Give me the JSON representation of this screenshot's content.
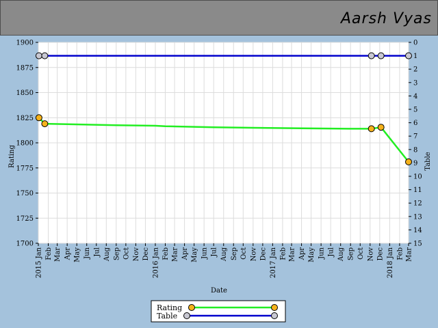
{
  "header": {
    "player_name": "Aarsh Vyas"
  },
  "chart_data": {
    "type": "line",
    "xlabel": "Date",
    "ylabel": "Rating",
    "y2label": "Table",
    "ylim": [
      1700,
      1900
    ],
    "y2lim": [
      0,
      15
    ],
    "y2_inverted": true,
    "grid": true,
    "legend_position": "bottom-center",
    "x_ticks": [
      {
        "date": "2015-01",
        "label": "2015 Jan"
      },
      {
        "date": "2015-02",
        "label": "Feb"
      },
      {
        "date": "2015-03",
        "label": "Mar"
      },
      {
        "date": "2015-04",
        "label": "Apr"
      },
      {
        "date": "2015-05",
        "label": "May"
      },
      {
        "date": "2015-06",
        "label": "Jun"
      },
      {
        "date": "2015-07",
        "label": "Jul"
      },
      {
        "date": "2015-08",
        "label": "Aug"
      },
      {
        "date": "2015-09",
        "label": "Sep"
      },
      {
        "date": "2015-10",
        "label": "Oct"
      },
      {
        "date": "2015-11",
        "label": "Nov"
      },
      {
        "date": "2015-12",
        "label": "Dec"
      },
      {
        "date": "2016-01",
        "label": "2016 Jan"
      },
      {
        "date": "2016-02",
        "label": "Feb"
      },
      {
        "date": "2016-03",
        "label": "Mar"
      },
      {
        "date": "2016-04",
        "label": "Apr"
      },
      {
        "date": "2016-05",
        "label": "May"
      },
      {
        "date": "2016-06",
        "label": "Jun"
      },
      {
        "date": "2016-07",
        "label": "Jul"
      },
      {
        "date": "2016-08",
        "label": "Aug"
      },
      {
        "date": "2016-09",
        "label": "Sep"
      },
      {
        "date": "2016-10",
        "label": "Oct"
      },
      {
        "date": "2016-11",
        "label": "Nov"
      },
      {
        "date": "2016-12",
        "label": "Dec"
      },
      {
        "date": "2017-01",
        "label": "2017 Jan"
      },
      {
        "date": "2017-02",
        "label": "Feb"
      },
      {
        "date": "2017-03",
        "label": "Mar"
      },
      {
        "date": "2017-04",
        "label": "Apr"
      },
      {
        "date": "2017-05",
        "label": "May"
      },
      {
        "date": "2017-06",
        "label": "Jun"
      },
      {
        "date": "2017-07",
        "label": "Jul"
      },
      {
        "date": "2017-08",
        "label": "Aug"
      },
      {
        "date": "2017-09",
        "label": "Sep"
      },
      {
        "date": "2017-10",
        "label": "Oct"
      },
      {
        "date": "2017-11",
        "label": "Nov"
      },
      {
        "date": "2017-12",
        "label": "Dec"
      },
      {
        "date": "2018-01",
        "label": "2018 Jan"
      },
      {
        "date": "2018-02",
        "label": "Feb"
      },
      {
        "date": "2018-03",
        "label": "Mar"
      }
    ],
    "y_ticks": [
      1700,
      1725,
      1750,
      1775,
      1800,
      1825,
      1850,
      1875,
      1900
    ],
    "y2_ticks": [
      0,
      1,
      2,
      3,
      4,
      5,
      6,
      7,
      8,
      9,
      10,
      11,
      12,
      13,
      14,
      15
    ],
    "series": [
      {
        "name": "Rating",
        "axis": "left",
        "line_color": "#22ee22",
        "marker_color": "#f5b21b",
        "points": [
          {
            "x": "2015-01-03",
            "y": 1825,
            "marker": true
          },
          {
            "x": "2015-01-21",
            "y": 1819,
            "marker": true
          },
          {
            "x": "2015-04-01",
            "y": 1818.5,
            "marker": false
          },
          {
            "x": "2015-09-01",
            "y": 1817.5,
            "marker": false
          },
          {
            "x": "2016-01-01",
            "y": 1817,
            "marker": false
          },
          {
            "x": "2016-02-01",
            "y": 1816.5,
            "marker": false
          },
          {
            "x": "2016-07-01",
            "y": 1815.5,
            "marker": false
          },
          {
            "x": "2016-11-01",
            "y": 1815,
            "marker": false
          },
          {
            "x": "2017-04-01",
            "y": 1814.5,
            "marker": false
          },
          {
            "x": "2017-09-01",
            "y": 1814,
            "marker": false
          },
          {
            "x": "2017-11-05",
            "y": 1814,
            "marker": true
          },
          {
            "x": "2017-12-05",
            "y": 1815.5,
            "marker": true
          },
          {
            "x": "2018-03-01",
            "y": 1781,
            "marker": true
          }
        ]
      },
      {
        "name": "Table",
        "axis": "right",
        "line_color": "#0000cc",
        "marker_color": "#c8c8d2",
        "points": [
          {
            "x": "2015-01-03",
            "y": 1,
            "marker": true
          },
          {
            "x": "2015-01-21",
            "y": 1,
            "marker": true
          },
          {
            "x": "2017-11-05",
            "y": 1,
            "marker": true
          },
          {
            "x": "2017-12-05",
            "y": 1,
            "marker": true
          },
          {
            "x": "2018-03-01",
            "y": 1,
            "marker": true
          }
        ]
      }
    ]
  }
}
